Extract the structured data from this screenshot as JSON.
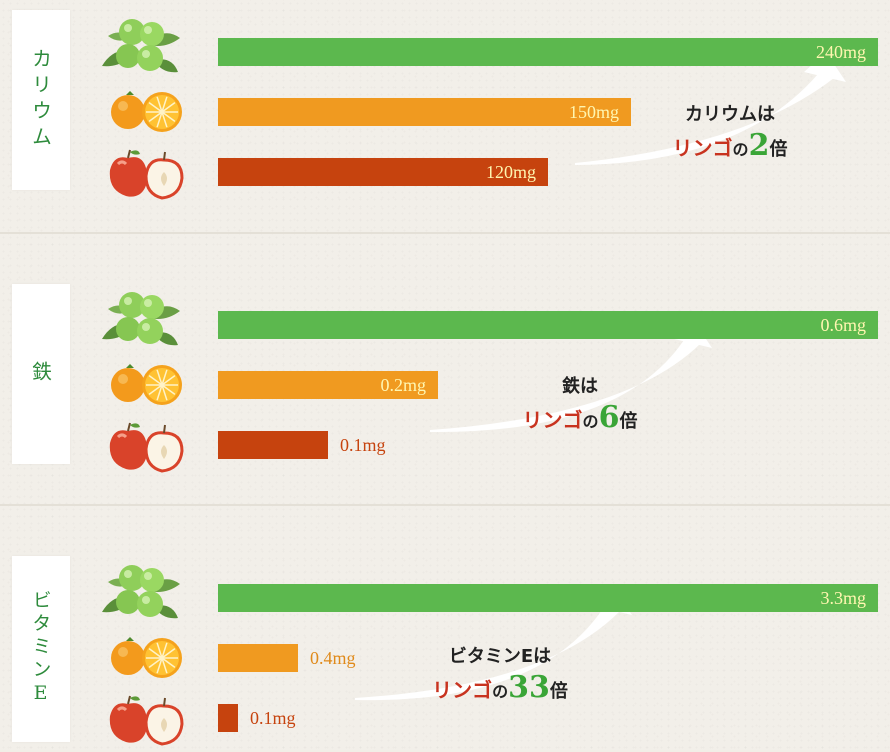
{
  "colors": {
    "green": "#5cb84e",
    "orange": "#f09a20",
    "red": "#c6430e",
    "value_inside": "#fff6b0",
    "value_outside_orange": "#e08a1a",
    "value_outside_red": "#c6430e"
  },
  "icons": [
    "green-grape-icon",
    "orange-icon",
    "apple-icon"
  ],
  "chart_data": [
    {
      "type": "bar",
      "category": "カリウム",
      "unit": "mg",
      "series": [
        {
          "fruit": "green-grape-icon",
          "value": 240,
          "label": "240mg"
        },
        {
          "fruit": "orange-icon",
          "value": 150,
          "label": "150mg"
        },
        {
          "fruit": "apple-icon",
          "value": 120,
          "label": "120mg"
        }
      ],
      "callout": {
        "line1": "カリウムは",
        "red": "リンゴ",
        "no": "の",
        "num": "2",
        "bai": "倍"
      }
    },
    {
      "type": "bar",
      "category": "鉄",
      "unit": "mg",
      "series": [
        {
          "fruit": "green-grape-icon",
          "value": 0.6,
          "label": "0.6mg"
        },
        {
          "fruit": "orange-icon",
          "value": 0.2,
          "label": "0.2mg"
        },
        {
          "fruit": "apple-icon",
          "value": 0.1,
          "label": "0.1mg"
        }
      ],
      "callout": {
        "line1": "鉄は",
        "red": "リンゴ",
        "no": "の",
        "num": "6",
        "bai": "倍"
      }
    },
    {
      "type": "bar",
      "category": "ビタミンE",
      "unit": "mg",
      "series": [
        {
          "fruit": "green-grape-icon",
          "value": 3.3,
          "label": "3.3mg"
        },
        {
          "fruit": "orange-icon",
          "value": 0.4,
          "label": "0.4mg"
        },
        {
          "fruit": "apple-icon",
          "value": 0.1,
          "label": "0.1mg"
        }
      ],
      "callout": {
        "line1": "ビタミンEは",
        "red": "リンゴ",
        "no": "の",
        "num": "33",
        "bai": "倍"
      }
    }
  ]
}
